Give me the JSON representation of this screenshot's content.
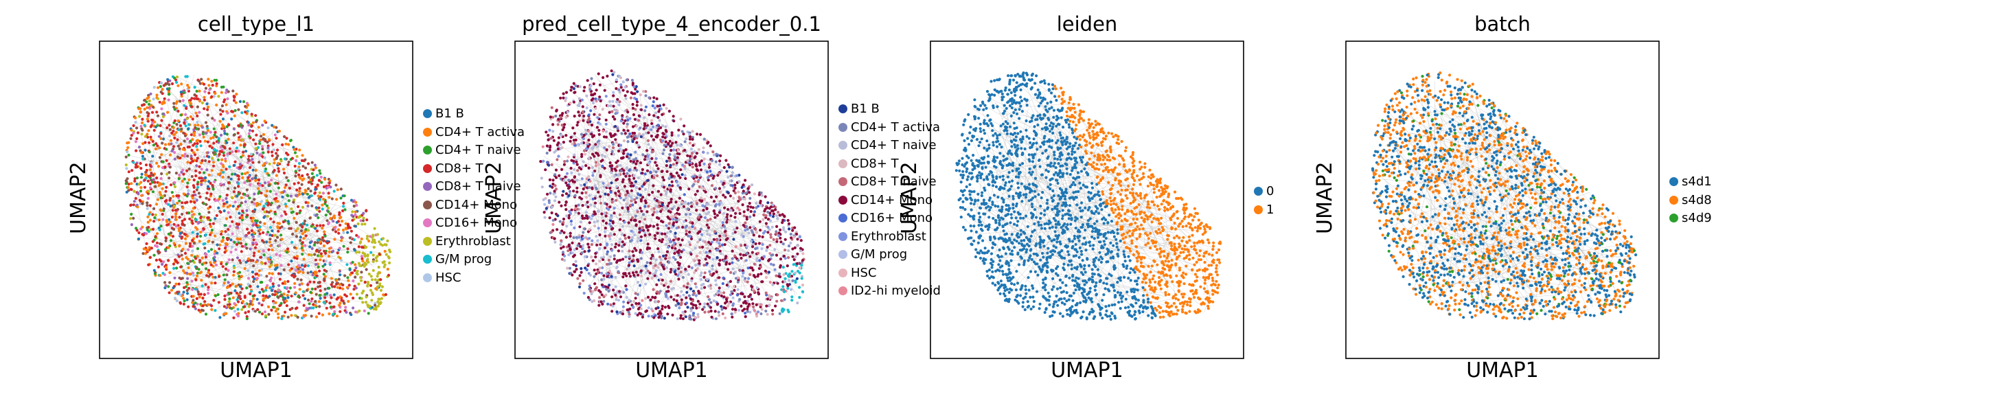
{
  "chart_data": [
    {
      "type": "scatter",
      "title": "cell_type_l1",
      "xlabel": "UMAP1",
      "ylabel": "UMAP2",
      "legend_position": "right",
      "categories": [
        "B1 B",
        "CD4+ T activa",
        "CD4+ T naive",
        "CD8+ T",
        "CD8+ T naive",
        "CD14+ Mono",
        "CD16+ Mono",
        "Erythroblast",
        "G/M prog",
        "HSC"
      ],
      "colors": [
        "#1f77b4",
        "#ff7f0e",
        "#2ca02c",
        "#d62728",
        "#9467bd",
        "#8c564b",
        "#e377c2",
        "#bcbd22",
        "#17becf",
        "#aec7e8"
      ]
    },
    {
      "type": "scatter",
      "title": "pred_cell_type_4_encoder_0.1",
      "xlabel": "UMAP1",
      "ylabel": "UMAP2",
      "legend_position": "right",
      "categories": [
        "B1 B",
        "CD4+ T activa",
        "CD4+ T naive",
        "CD8+ T",
        "CD8+ T naive",
        "CD14+ Mono",
        "CD16+ Mono",
        "Erythroblast",
        "G/M prog",
        "HSC",
        "ID2-hi myeloid"
      ],
      "colors": [
        "#1f3e9a",
        "#7b86b8",
        "#b8bcd8",
        "#dcb8c0",
        "#c46878",
        "#8b0a3c",
        "#4a6cd4",
        "#7f93e0",
        "#b2bde8",
        "#e8b4bc",
        "#e88898"
      ]
    },
    {
      "type": "scatter",
      "title": "leiden",
      "xlabel": "UMAP1",
      "ylabel": "UMAP2",
      "legend_position": "right",
      "categories": [
        "0",
        "1"
      ],
      "colors": [
        "#1f77b4",
        "#ff7f0e"
      ]
    },
    {
      "type": "scatter",
      "title": "batch",
      "xlabel": "UMAP1",
      "ylabel": "UMAP2",
      "legend_position": "right",
      "categories": [
        "s4d1",
        "s4d8",
        "s4d9"
      ],
      "colors": [
        "#1f77b4",
        "#ff7f0e",
        "#2ca02c"
      ]
    }
  ]
}
